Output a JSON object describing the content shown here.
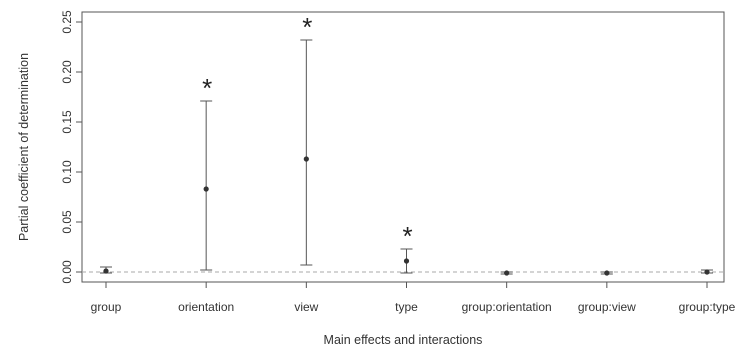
{
  "chart_data": {
    "type": "scatter",
    "xlabel": "Main effects and interactions",
    "ylabel": "Partial coefficient of determination",
    "categories": [
      "group",
      "orientation",
      "view",
      "type",
      "group:orientation",
      "group:view",
      "group:type"
    ],
    "series": [
      {
        "values": [
          0.001,
          0.083,
          0.113,
          0.011,
          -0.001,
          -0.001,
          0.0
        ],
        "lower": [
          -0.001,
          0.002,
          0.007,
          -0.001,
          -0.002,
          -0.002,
          -0.001
        ],
        "upper": [
          0.005,
          0.171,
          0.232,
          0.023,
          0.0,
          0.0,
          0.002
        ]
      }
    ],
    "significance_markers": [
      "",
      "*",
      "*",
      "*",
      "",
      "",
      ""
    ],
    "ylim": [
      -0.01,
      0.26
    ],
    "yticks": [
      "0.00",
      "0.05",
      "0.10",
      "0.15",
      "0.20",
      "0.25"
    ],
    "reference_line": 0.0,
    "grid": false,
    "colors": {
      "points": "#333333",
      "error_bars": "#555555",
      "reference_line": "#aaaaaa",
      "axes": "#555555"
    }
  }
}
